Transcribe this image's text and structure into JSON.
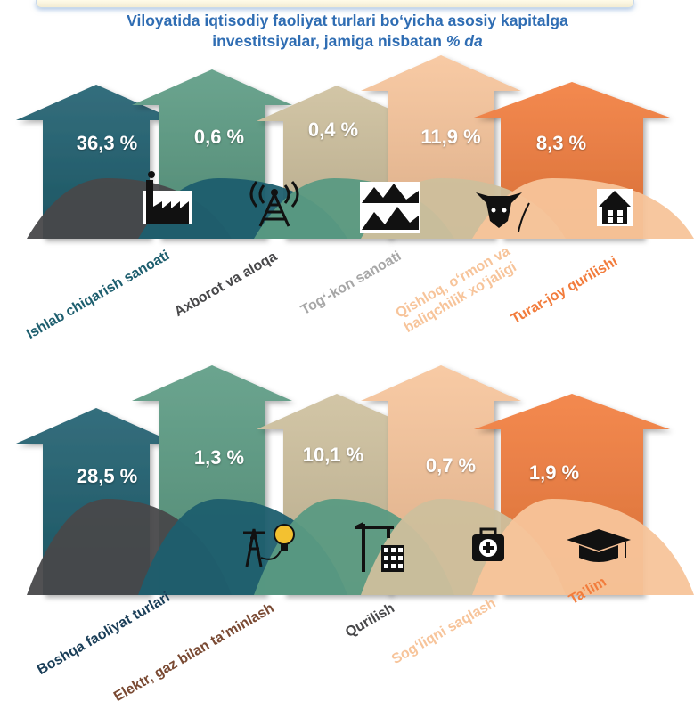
{
  "title_line1": "Viloyatida iqtisodiy faoliyat turlari bo‘yicha asosiy kapitalga",
  "title_line2": "investitsiyalar, jamiga nisbatan ",
  "title_line2_italic": "% da",
  "colors": {
    "teal": "#1d5e6e",
    "green": "#5a9a82",
    "beige": "#cdbf9c",
    "peach": "#f7c49a",
    "orange": "#f27c3c",
    "gray": "#48484a",
    "dark_navy": "#1a3e58",
    "brown": "#7a4a33",
    "light_gray": "#a7a7a7"
  },
  "chart_data": [
    {
      "type": "bar",
      "categories": [
        "Ishlab chiqarish sanoati",
        "Axborot va aloqa",
        "Tog‘-kon sanoati",
        "Qishloq, o‘rmon va baliqchilik xo‘jaligi",
        "Turar-joy qurilishi"
      ],
      "values": [
        36.3,
        0.6,
        0.4,
        11.9,
        8.3
      ],
      "value_labels": [
        "36,3 %",
        "0,6 %",
        "0,4 %",
        "11,9 %",
        "8,3 %"
      ],
      "label_lines": [
        [
          "Ishlab chiqarish sanoati"
        ],
        [
          "Axborot va aloqa"
        ],
        [
          "Tog‘-kon sanoati"
        ],
        [
          "Qishloq, o‘rmon va",
          "baliqchilik xo‘jaligi"
        ],
        [
          "Turar-joy qurilishi"
        ]
      ],
      "icons": [
        "factory-icon",
        "radio-tower-icon",
        "mountains-icon",
        "cow-wheat-icon",
        "house-icon"
      ]
    },
    {
      "type": "bar",
      "categories": [
        "Boshqa faoliyat turlari",
        "Elektr, gaz bilan ta’minlash",
        "Qurilish",
        "Sog‘liqni saqlash",
        "Ta’lim"
      ],
      "values": [
        28.5,
        1.3,
        10.1,
        0.7,
        1.9
      ],
      "value_labels": [
        "28,5 %",
        "1,3 %",
        "10,1 %",
        "0,7 %",
        "1,9 %"
      ],
      "label_lines": [
        [
          "Boshqa  faoliyat turlari"
        ],
        [
          "Elektr, gaz bilan ta’minlash"
        ],
        [
          "Qurilish"
        ],
        [
          "Sog‘liqni saqlash"
        ],
        [
          "Ta’lim"
        ]
      ],
      "icons": [
        "power-bulb-icon",
        "crane-building-icon",
        "first-aid-kit-icon",
        "graduation-cap-icon"
      ]
    }
  ]
}
